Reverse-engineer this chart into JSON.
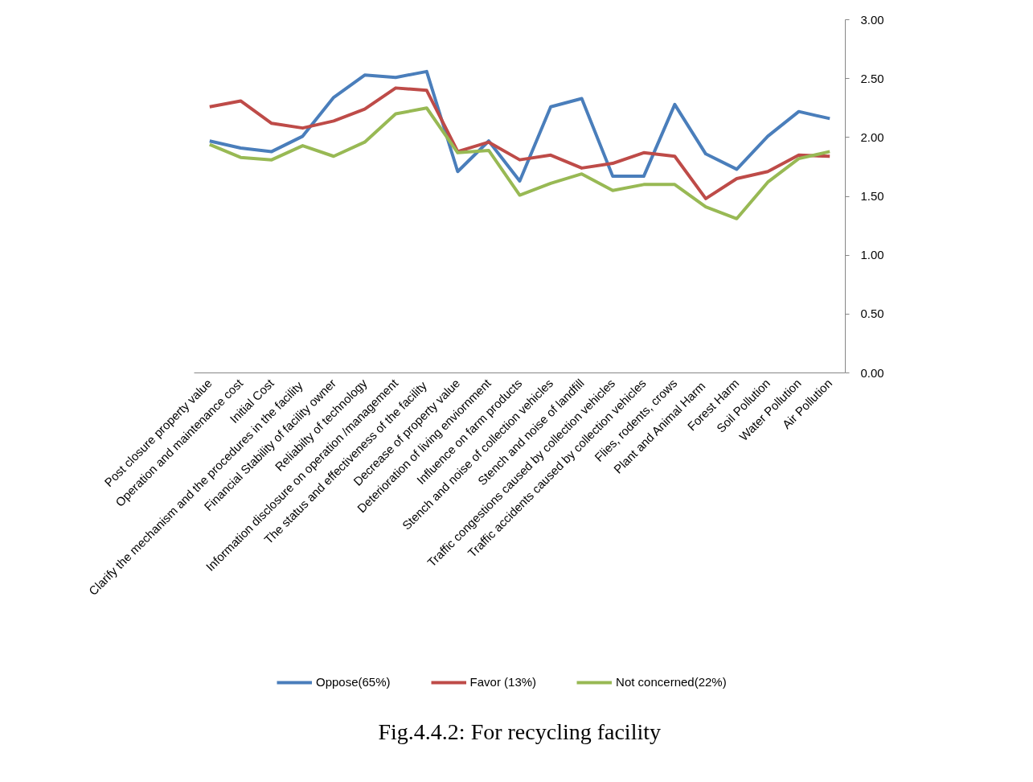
{
  "chart_data": {
    "type": "line",
    "title": "Fig.4.4.2: For recycling facility",
    "categories": [
      "Post closure property value",
      "Operation and maintenance cost",
      "Initial Cost",
      "Clarify the mechanism  and the procedures in the facility",
      "Financial Stability of facility owner",
      "Reliabilty of technology",
      "Information disclosure on operation /management",
      "The status  and effectiveness of the facility",
      "Decrease of property value",
      "Deterioration of living enviornment",
      "Influence on farm products",
      "Stench and noise of collection vehicles",
      "Stench and noise of landfill",
      "Traffic congestions caused by collection vehicles",
      "Traffic accidents caused by collection vehicles",
      "Flies, rodents, crows",
      "Plant and Animal  Harm",
      "Forest Harm",
      "Soil Pollution",
      "Water Pollution",
      "Air Pollution"
    ],
    "series": [
      {
        "name": "Oppose(65%)",
        "color": "#4a7ebb",
        "values": [
          1.97,
          1.91,
          1.88,
          2.01,
          2.34,
          2.53,
          2.51,
          2.56,
          1.71,
          1.97,
          1.63,
          2.26,
          2.33,
          1.67,
          1.67,
          2.28,
          1.86,
          1.73,
          2.01,
          2.22,
          2.16
        ]
      },
      {
        "name": "Favor (13%)",
        "color": "#be4b48",
        "values": [
          2.26,
          2.31,
          2.12,
          2.08,
          2.14,
          2.24,
          2.42,
          2.4,
          1.88,
          1.96,
          1.81,
          1.85,
          1.74,
          1.78,
          1.87,
          1.84,
          1.48,
          1.65,
          1.71,
          1.85,
          1.84
        ]
      },
      {
        "name": "Not concerned(22%)",
        "color": "#98b954",
        "values": [
          1.94,
          1.83,
          1.81,
          1.93,
          1.84,
          1.96,
          2.2,
          2.25,
          1.87,
          1.89,
          1.51,
          1.61,
          1.69,
          1.55,
          1.6,
          1.6,
          1.41,
          1.31,
          1.62,
          1.82,
          1.88
        ]
      }
    ],
    "ylim": [
      0,
      3
    ],
    "yticks": [
      {
        "value": 0,
        "label": "0.00"
      },
      {
        "value": 0.5,
        "label": "0.50"
      },
      {
        "value": 1,
        "label": "1.00"
      },
      {
        "value": 1.5,
        "label": "1.50"
      },
      {
        "value": 2,
        "label": "2.00"
      },
      {
        "value": 2.5,
        "label": "2.50"
      },
      {
        "value": 3,
        "label": "3.00"
      }
    ],
    "legend": "bottom"
  }
}
